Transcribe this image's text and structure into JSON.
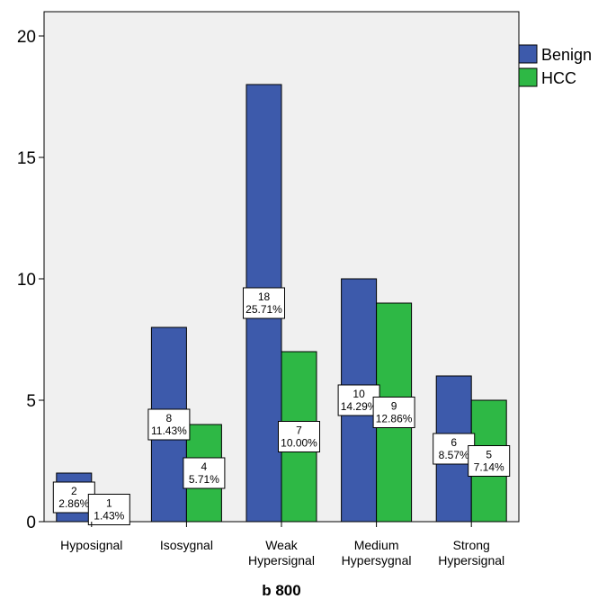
{
  "chart_data": {
    "type": "bar",
    "title": "",
    "xlabel": "b 800",
    "ylabel": "",
    "ylim": [
      0,
      21
    ],
    "yticks": [
      0,
      5,
      10,
      15,
      20
    ],
    "grid": false,
    "legend_position": "right",
    "categories": [
      [
        "Hyposignal"
      ],
      [
        "Isosygnal"
      ],
      [
        "Weak",
        "Hypersignal"
      ],
      [
        "Medium",
        "Hypersygnal"
      ],
      [
        "Strong",
        "Hypersignal"
      ]
    ],
    "series": [
      {
        "name": "Benign",
        "color": "#3d5aab",
        "values": [
          2,
          8,
          18,
          10,
          6
        ],
        "labels": [
          [
            "2",
            "2.86%"
          ],
          [
            "8",
            "11.43%"
          ],
          [
            "18",
            "25.71%"
          ],
          [
            "10",
            "14.29%"
          ],
          [
            "6",
            "8.57%"
          ]
        ]
      },
      {
        "name": "HCC",
        "color": "#2eb845",
        "values": [
          1,
          4,
          7,
          9,
          5
        ],
        "labels": [
          [
            "1",
            "1.43%"
          ],
          [
            "4",
            "5.71%"
          ],
          [
            "7",
            "10.00%"
          ],
          [
            "9",
            "12.86%"
          ],
          [
            "5",
            "7.14%"
          ]
        ]
      }
    ]
  }
}
